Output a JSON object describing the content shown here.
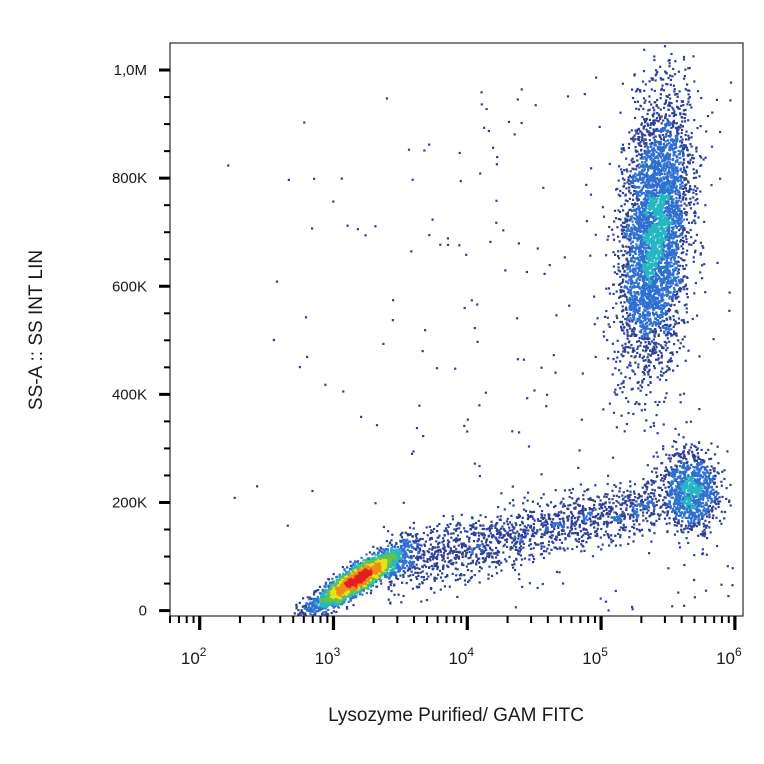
{
  "chart_data": {
    "type": "scatter",
    "title": "",
    "xlabel": "Lysozyme Purified/ GAM FITC",
    "ylabel": "SS-A :: SS INT LIN",
    "x_scale": "log",
    "xlim": [
      60,
      1150000
    ],
    "ylim": [
      -10000,
      1050000
    ],
    "y_ticks": [
      {
        "value": 0,
        "label": "0"
      },
      {
        "value": 200000,
        "label": "200K"
      },
      {
        "value": 400000,
        "label": "400K"
      },
      {
        "value": 600000,
        "label": "600K"
      },
      {
        "value": 800000,
        "label": "800K"
      },
      {
        "value": 1000000,
        "label": "1,0M"
      }
    ],
    "x_ticks": [
      {
        "value": 100,
        "base": "10",
        "exp": "2"
      },
      {
        "value": 1000,
        "base": "10",
        "exp": "3"
      },
      {
        "value": 10000,
        "base": "10",
        "exp": "4"
      },
      {
        "value": 100000,
        "base": "10",
        "exp": "5"
      },
      {
        "value": 1000000,
        "base": "10",
        "exp": "6"
      }
    ],
    "grid": false,
    "legend": "none",
    "density_colors": [
      "#2e3f96",
      "#2f6fd0",
      "#27b6c2",
      "#63c24a",
      "#e6e21c",
      "#f08a1d",
      "#e3201c"
    ],
    "populations": [
      {
        "x_center": 1500,
        "y_center": 60000,
        "events": 3000
      },
      {
        "x_center": 250000,
        "y_center": 700000,
        "events": 4200
      },
      {
        "x_center": 450000,
        "y_center": 220000,
        "events": 1100
      },
      {
        "x_range": [
          2500,
          250000
        ],
        "y_range": [
          80000,
          200000
        ],
        "events": 1500
      },
      {
        "x_range": [
          100,
          1000000
        ],
        "y_range": [
          0,
          1000000
        ],
        "events": 250
      }
    ]
  }
}
